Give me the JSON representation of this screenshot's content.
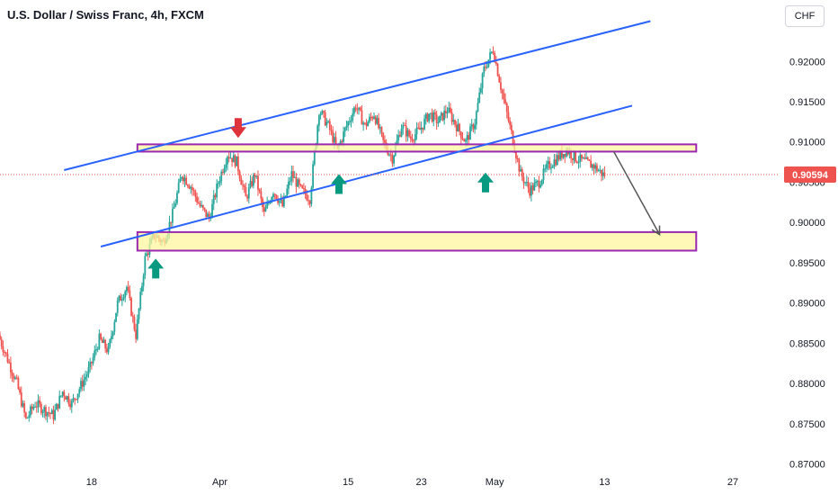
{
  "header": {
    "title": "U.S. Dollar / Swiss Franc, 4h, FXCM",
    "currency_button": "CHF"
  },
  "colors": {
    "up": "#26a69a",
    "down": "#ef5350",
    "channel": "#2962ff",
    "zone_fill": "#fff59d",
    "zone_border": "#9c27b0",
    "arrow_down": "#e0323b",
    "arrow_up": "#089981",
    "projection": "#555555"
  },
  "chart_data": {
    "type": "candlestick",
    "ylim": [
      0.8695,
      0.9245
    ],
    "y_ticks": [
      0.92,
      0.915,
      0.91,
      0.905,
      0.9,
      0.895,
      0.89,
      0.885,
      0.88,
      0.875,
      0.87
    ],
    "y_tick_labels": [
      "0.92000",
      "0.91500",
      "0.91000",
      "0.90500",
      "0.90000",
      "0.89500",
      "0.89000",
      "0.88500",
      "0.88000",
      "0.87500",
      "0.87000"
    ],
    "x_ticks": [
      {
        "label": "18",
        "date": "2024-03-18"
      },
      {
        "label": "Apr",
        "date": "2024-04-01"
      },
      {
        "label": "15",
        "date": "2024-04-15"
      },
      {
        "label": "23",
        "date": "2024-04-23"
      },
      {
        "label": "May",
        "date": "2024-05-01"
      },
      {
        "label": "13",
        "date": "2024-05-13"
      },
      {
        "label": "27",
        "date": "2024-05-27"
      }
    ],
    "current_price": 0.90594,
    "current_price_label": "0.90594",
    "price_path": [
      [
        "2024-03-08",
        0.886
      ],
      [
        "2024-03-10",
        0.88
      ],
      [
        "2024-03-11",
        0.8755
      ],
      [
        "2024-03-12",
        0.8775
      ],
      [
        "2024-03-14",
        0.876
      ],
      [
        "2024-03-15",
        0.879
      ],
      [
        "2024-03-16",
        0.8775
      ],
      [
        "2024-03-18",
        0.882
      ],
      [
        "2024-03-19",
        0.8855
      ],
      [
        "2024-03-20",
        0.884
      ],
      [
        "2024-03-21",
        0.89
      ],
      [
        "2024-03-22",
        0.892
      ],
      [
        "2024-03-23",
        0.886
      ],
      [
        "2024-03-24",
        0.8955
      ],
      [
        "2024-03-25",
        0.8985
      ],
      [
        "2024-03-26",
        0.8975
      ],
      [
        "2024-03-27",
        0.901
      ],
      [
        "2024-03-28",
        0.906
      ],
      [
        "2024-03-29",
        0.9045
      ],
      [
        "2024-03-30",
        0.902
      ],
      [
        "2024-03-31",
        0.9005
      ],
      [
        "2024-04-01",
        0.905
      ],
      [
        "2024-04-02",
        0.9085
      ],
      [
        "2024-04-03",
        0.9075
      ],
      [
        "2024-04-04",
        0.903
      ],
      [
        "2024-04-05",
        0.906
      ],
      [
        "2024-04-06",
        0.901
      ],
      [
        "2024-04-07",
        0.904
      ],
      [
        "2024-04-08",
        0.902
      ],
      [
        "2024-04-09",
        0.906
      ],
      [
        "2024-04-10",
        0.904
      ],
      [
        "2024-04-11",
        0.903
      ],
      [
        "2024-04-12",
        0.914
      ],
      [
        "2024-04-13",
        0.912
      ],
      [
        "2024-04-14",
        0.909
      ],
      [
        "2024-04-15",
        0.912
      ],
      [
        "2024-04-16",
        0.9145
      ],
      [
        "2024-04-17",
        0.912
      ],
      [
        "2024-04-18",
        0.9135
      ],
      [
        "2024-04-19",
        0.91
      ],
      [
        "2024-04-20",
        0.908
      ],
      [
        "2024-04-21",
        0.912
      ],
      [
        "2024-04-22",
        0.9105
      ],
      [
        "2024-04-23",
        0.9115
      ],
      [
        "2024-04-24",
        0.9135
      ],
      [
        "2024-04-25",
        0.9125
      ],
      [
        "2024-04-26",
        0.914
      ],
      [
        "2024-04-27",
        0.912
      ],
      [
        "2024-04-28",
        0.91
      ],
      [
        "2024-04-29",
        0.9125
      ],
      [
        "2024-04-30",
        0.919
      ],
      [
        "2024-05-01",
        0.9215
      ],
      [
        "2024-05-02",
        0.916
      ],
      [
        "2024-05-03",
        0.911
      ],
      [
        "2024-05-04",
        0.906
      ],
      [
        "2024-05-05",
        0.904
      ],
      [
        "2024-05-06",
        0.905
      ],
      [
        "2024-05-07",
        0.907
      ],
      [
        "2024-05-08",
        0.908
      ],
      [
        "2024-05-09",
        0.909
      ],
      [
        "2024-05-10",
        0.908
      ],
      [
        "2024-05-11",
        0.9075
      ],
      [
        "2024-05-12",
        0.907
      ],
      [
        "2024-05-13",
        0.90594
      ]
    ],
    "annotations": {
      "channel_upper": [
        [
          "2024-03-15",
          0.9065
        ],
        [
          "2024-05-18",
          0.925
        ]
      ],
      "channel_lower": [
        [
          "2024-03-19",
          0.897
        ],
        [
          "2024-05-16",
          0.9145
        ]
      ],
      "resistance_zone": {
        "from": "2024-03-23",
        "to": "2024-05-23",
        "y_low": 0.9088,
        "y_high": 0.9097
      },
      "support_zone": {
        "from": "2024-03-23",
        "to": "2024-05-23",
        "y_low": 0.8965,
        "y_high": 0.8988
      },
      "arrow_down": {
        "date": "2024-04-03",
        "y": 0.9105
      },
      "arrows_up": [
        {
          "date": "2024-03-25",
          "y": 0.8955
        },
        {
          "date": "2024-04-14",
          "y": 0.906
        },
        {
          "date": "2024-04-30",
          "y": 0.9062
        }
      ],
      "projection": [
        [
          "2024-05-14",
          0.9088
        ],
        [
          "2024-05-19",
          0.8985
        ]
      ]
    }
  }
}
